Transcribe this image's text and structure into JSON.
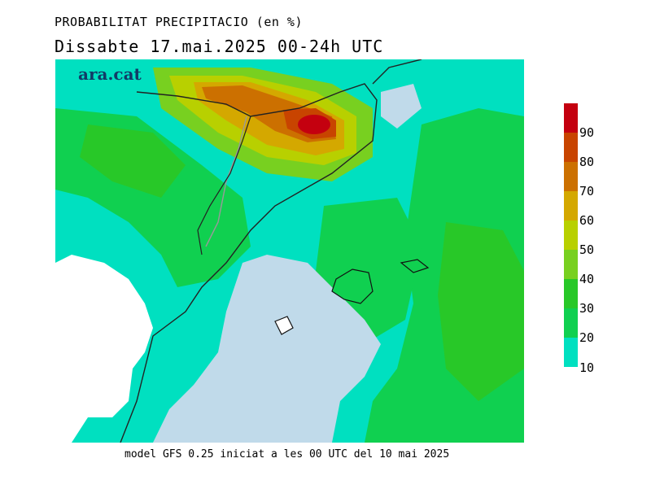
{
  "title": "PROBABILITAT PRECIPITACIO (en %)",
  "subtitle": "Dissabte   17.mai.2025 00-24h UTC",
  "brand": "ara.cat",
  "footer": "model GFS 0.25 iniciat a les 00 UTC del 10 mai 2025",
  "legend": {
    "levels": [
      {
        "label": "",
        "color": "#c4000f"
      },
      {
        "label": "90",
        "color": "#c84400"
      },
      {
        "label": "80",
        "color": "#cc7000"
      },
      {
        "label": "70",
        "color": "#d4a800"
      },
      {
        "label": "60",
        "color": "#b8d000"
      },
      {
        "label": "50",
        "color": "#78d020"
      },
      {
        "label": "40",
        "color": "#28c828"
      },
      {
        "label": "30",
        "color": "#10d050"
      },
      {
        "label": "20",
        "color": "#00e090"
      },
      {
        "label": "10",
        "color": "#00e0c0"
      }
    ]
  },
  "colors": {
    "sea_no_rain": "#c0daea",
    "land_no_rain": "#ffffff",
    "border": "#222222",
    "internal_border": "#999999"
  }
}
